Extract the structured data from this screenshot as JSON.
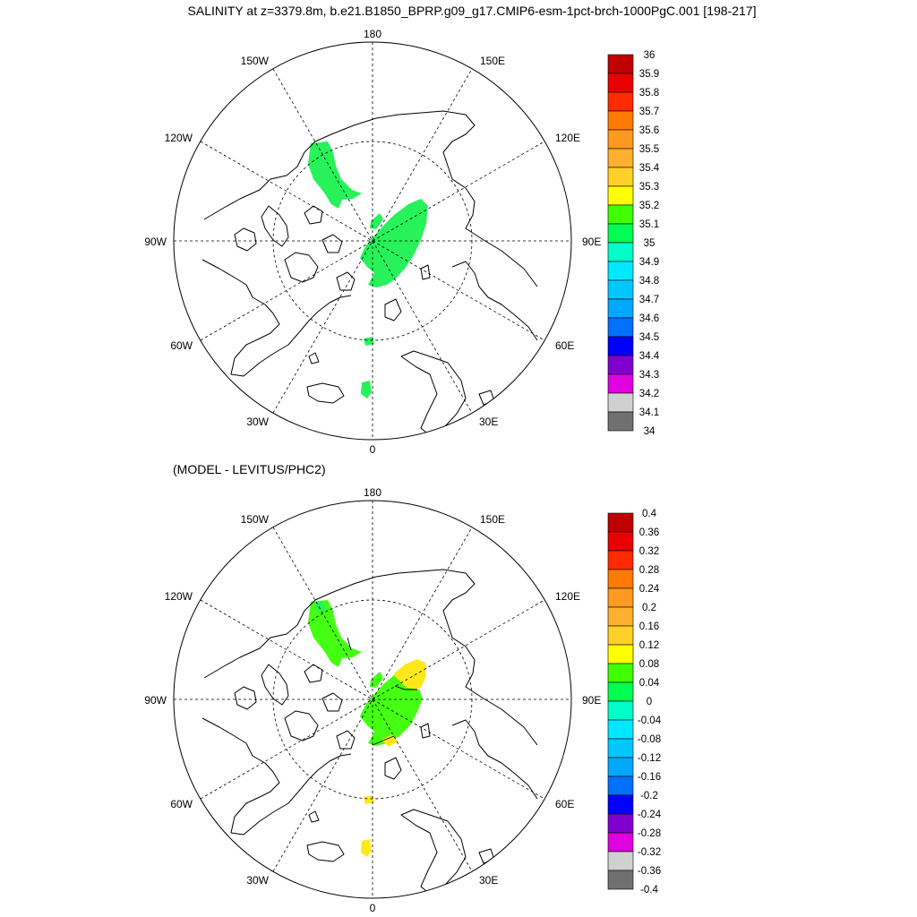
{
  "title": "SALINITY at z=3379.8m, b.e21.B1850_BPRP.g09_g17.CMIP6-esm-1pct-brch-1000PgC.001 [198-217]",
  "subtitle": "(MODEL - LEVITUS/PHC2)",
  "longitude_labels": [
    "180",
    "150E",
    "120E",
    "90E",
    "60E",
    "30E",
    "0",
    "30W",
    "60W",
    "90W",
    "120W",
    "150W"
  ],
  "panels": [
    {
      "id": "model",
      "colorbar": {
        "labels": [
          "36",
          "35.9",
          "35.8",
          "35.7",
          "35.6",
          "35.5",
          "35.4",
          "35.3",
          "35.2",
          "35.1",
          "35",
          "34.9",
          "34.8",
          "34.7",
          "34.6",
          "34.5",
          "34.4",
          "34.3",
          "34.2",
          "34.1",
          "34"
        ],
        "colors": [
          "#c00000",
          "#e80000",
          "#ff2a00",
          "#ff7a00",
          "#ff9a20",
          "#ffb030",
          "#ffd028",
          "#ffff00",
          "#40ff00",
          "#00ff50",
          "#00ffc8",
          "#00e8ff",
          "#00c8ff",
          "#00a8ff",
          "#0070ff",
          "#0000ff",
          "#8000d0",
          "#e000e0",
          "#d0d0d0",
          "#707070"
        ]
      },
      "regions": [
        {
          "name": "canada-basin-patch",
          "fill": "#27f25a",
          "points": [
            [
              347,
              160
            ],
            [
              366,
              158
            ],
            [
              372,
              170
            ],
            [
              375,
              185
            ],
            [
              381,
              200
            ],
            [
              393,
              212
            ],
            [
              404,
              216
            ],
            [
              394,
              222
            ],
            [
              382,
              223
            ],
            [
              378,
              233
            ],
            [
              370,
              228
            ],
            [
              362,
              215
            ],
            [
              350,
              200
            ],
            [
              344,
              183
            ]
          ]
        },
        {
          "name": "eurasian-basin-patch",
          "fill": "#27f25a",
          "points": [
            [
              412,
              270
            ],
            [
              428,
              252
            ],
            [
              440,
              240
            ],
            [
              456,
              228
            ],
            [
              470,
              222
            ],
            [
              478,
              230
            ],
            [
              476,
              250
            ],
            [
              470,
              268
            ],
            [
              462,
              285
            ],
            [
              452,
              300
            ],
            [
              441,
              312
            ],
            [
              432,
              318
            ],
            [
              420,
              321
            ],
            [
              411,
              318
            ],
            [
              418,
              305
            ],
            [
              410,
              298
            ],
            [
              402,
              288
            ],
            [
              408,
              275
            ]
          ]
        },
        {
          "name": "lomonosov-patch",
          "fill": "#27f25a",
          "points": [
            [
              414,
              247
            ],
            [
              424,
              238
            ],
            [
              428,
              245
            ],
            [
              420,
              256
            ],
            [
              413,
              255
            ]
          ]
        },
        {
          "name": "fram-patch",
          "fill": "#27f25a",
          "points": [
            [
              406,
              378
            ],
            [
              416,
              376
            ],
            [
              418,
              384
            ],
            [
              408,
              386
            ]
          ]
        },
        {
          "name": "nordic-patch",
          "fill": "#27f25a",
          "points": [
            [
              404,
              427
            ],
            [
              413,
              425
            ],
            [
              415,
              438
            ],
            [
              410,
              445
            ],
            [
              403,
              440
            ]
          ]
        }
      ]
    },
    {
      "id": "difference",
      "colorbar": {
        "labels": [
          "0.4",
          "0.36",
          "0.32",
          "0.28",
          "0.24",
          "0.2",
          "0.16",
          "0.12",
          "0.08",
          "0.04",
          "0",
          "-0.04",
          "-0.08",
          "-0.12",
          "-0.16",
          "-0.2",
          "-0.24",
          "-0.28",
          "-0.32",
          "-0.36",
          "-0.4"
        ],
        "colors": [
          "#c00000",
          "#e80000",
          "#ff2a00",
          "#ff7a00",
          "#ff9a20",
          "#ffb030",
          "#ffd028",
          "#ffff00",
          "#40ff00",
          "#00ff50",
          "#00ffc8",
          "#00e8ff",
          "#00c8ff",
          "#00a8ff",
          "#0070ff",
          "#0000ff",
          "#8000d0",
          "#e000e0",
          "#d0d0d0",
          "#707070"
        ]
      },
      "regions": [
        {
          "name": "canada-basin-patch",
          "fill": "#44ff12",
          "points": [
            [
              347,
              672
            ],
            [
              366,
              670
            ],
            [
              372,
              682
            ],
            [
              375,
              697
            ],
            [
              381,
              712
            ],
            [
              393,
              724
            ],
            [
              404,
              728
            ],
            [
              394,
              734
            ],
            [
              382,
              735
            ],
            [
              378,
              745
            ],
            [
              370,
              740
            ],
            [
              362,
              727
            ],
            [
              350,
              712
            ],
            [
              344,
              695
            ]
          ]
        },
        {
          "name": "canada-basin-small-patch",
          "fill": "#27f25a",
          "points": [
            [
              350,
              672
            ],
            [
              360,
              671
            ],
            [
              364,
              680
            ],
            [
              356,
              684
            ]
          ]
        },
        {
          "name": "eurasian-basin-yellow-patch",
          "fill": "#ffe81a",
          "points": [
            [
              440,
              752
            ],
            [
              452,
              742
            ],
            [
              466,
              736
            ],
            [
              475,
              740
            ],
            [
              476,
              755
            ],
            [
              470,
              768
            ],
            [
              455,
              772
            ],
            [
              442,
              766
            ]
          ]
        },
        {
          "name": "eurasian-basin-patch",
          "fill": "#44ff12",
          "points": [
            [
              412,
              782
            ],
            [
              428,
              764
            ],
            [
              440,
              754
            ],
            [
              454,
              768
            ],
            [
              468,
              770
            ],
            [
              472,
              780
            ],
            [
              466,
              795
            ],
            [
              458,
              810
            ],
            [
              446,
              822
            ],
            [
              432,
              830
            ],
            [
              420,
              833
            ],
            [
              411,
              830
            ],
            [
              418,
              817
            ],
            [
              410,
              810
            ],
            [
              402,
              800
            ],
            [
              408,
              787
            ]
          ]
        },
        {
          "name": "eurasian-basin-tip-patch",
          "fill": "#ffe81a",
          "points": [
            [
              426,
              826
            ],
            [
              438,
              820
            ],
            [
              444,
              828
            ],
            [
              434,
              834
            ]
          ]
        },
        {
          "name": "lomonosov-patch",
          "fill": "#44ff12",
          "points": [
            [
              414,
              759
            ],
            [
              424,
              750
            ],
            [
              428,
              757
            ],
            [
              420,
              768
            ],
            [
              413,
              767
            ]
          ]
        },
        {
          "name": "fram-patch",
          "fill": "#ffe81a",
          "points": [
            [
              406,
              890
            ],
            [
              416,
              888
            ],
            [
              418,
              896
            ],
            [
              408,
              898
            ]
          ]
        },
        {
          "name": "nordic-patch",
          "fill": "#ffe81a",
          "points": [
            [
              404,
              939
            ],
            [
              413,
              937
            ],
            [
              415,
              950
            ],
            [
              410,
              957
            ],
            [
              403,
              952
            ]
          ]
        }
      ]
    }
  ]
}
